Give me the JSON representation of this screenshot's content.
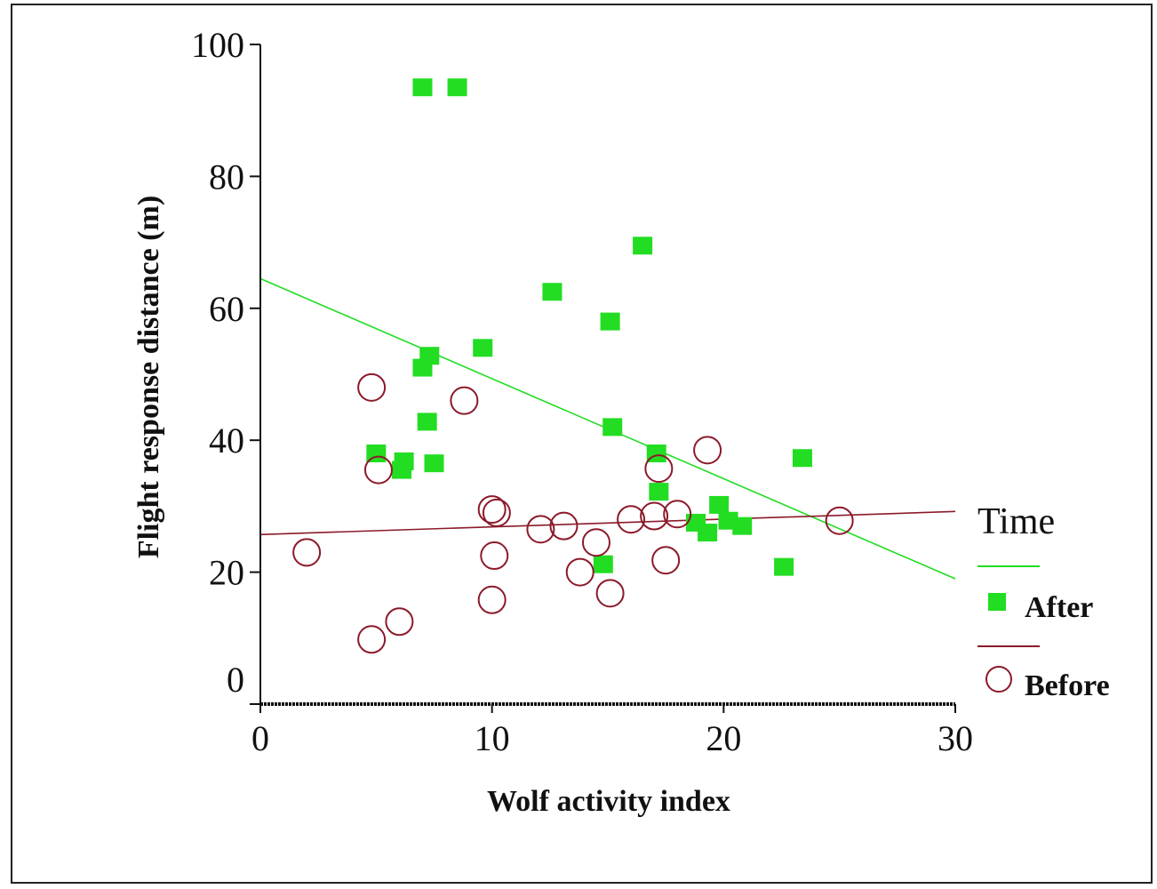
{
  "chart_data": {
    "type": "scatter",
    "title": "",
    "xlabel": "Wolf  activity index",
    "ylabel": "Flight response distance (m)",
    "xlim": [
      0,
      30
    ],
    "ylim": [
      0,
      100
    ],
    "x_ticks": [
      "0",
      "10",
      "20",
      "30"
    ],
    "y_ticks": [
      "0",
      "20",
      "40",
      "60",
      "80",
      "100"
    ],
    "grid": false,
    "legend": {
      "title": "Time",
      "placement": "right"
    },
    "series": [
      {
        "name": "After",
        "marker": "filled-square",
        "color": "#22dd22",
        "points": [
          [
            7.0,
            93.5
          ],
          [
            8.5,
            93.5
          ],
          [
            16.5,
            69.5
          ],
          [
            12.6,
            62.5
          ],
          [
            15.1,
            58.0
          ],
          [
            9.6,
            54.0
          ],
          [
            7.3,
            52.8
          ],
          [
            7.0,
            51.0
          ],
          [
            7.2,
            42.8
          ],
          [
            15.2,
            42.0
          ],
          [
            17.1,
            38.0
          ],
          [
            23.4,
            37.3
          ],
          [
            5.0,
            38.0
          ],
          [
            6.2,
            36.8
          ],
          [
            6.1,
            35.5
          ],
          [
            7.5,
            36.5
          ],
          [
            17.2,
            32.2
          ],
          [
            19.8,
            30.2
          ],
          [
            18.8,
            27.5
          ],
          [
            20.2,
            27.8
          ],
          [
            20.8,
            27.0
          ],
          [
            19.3,
            26.0
          ],
          [
            14.8,
            21.2
          ],
          [
            22.6,
            20.8
          ]
        ],
        "trend": [
          [
            0,
            64.5
          ],
          [
            30,
            19.0
          ]
        ]
      },
      {
        "name": "Before",
        "marker": "open-circle",
        "color": "#8b1a2a",
        "points": [
          [
            4.8,
            48.0
          ],
          [
            8.8,
            46.0
          ],
          [
            5.1,
            35.5
          ],
          [
            17.2,
            35.7
          ],
          [
            19.3,
            38.5
          ],
          [
            10.0,
            29.5
          ],
          [
            10.2,
            29.0
          ],
          [
            10.1,
            22.5
          ],
          [
            12.1,
            26.5
          ],
          [
            13.1,
            27.0
          ],
          [
            16.0,
            28.0
          ],
          [
            17.0,
            28.5
          ],
          [
            18.0,
            28.8
          ],
          [
            25.0,
            27.8
          ],
          [
            14.5,
            24.5
          ],
          [
            13.8,
            20.0
          ],
          [
            15.1,
            16.8
          ],
          [
            17.5,
            21.8
          ],
          [
            2.0,
            23.0
          ],
          [
            10.0,
            15.8
          ],
          [
            6.0,
            12.5
          ],
          [
            4.8,
            9.8
          ]
        ],
        "trend": [
          [
            0,
            25.7
          ],
          [
            30,
            29.2
          ]
        ]
      }
    ]
  }
}
